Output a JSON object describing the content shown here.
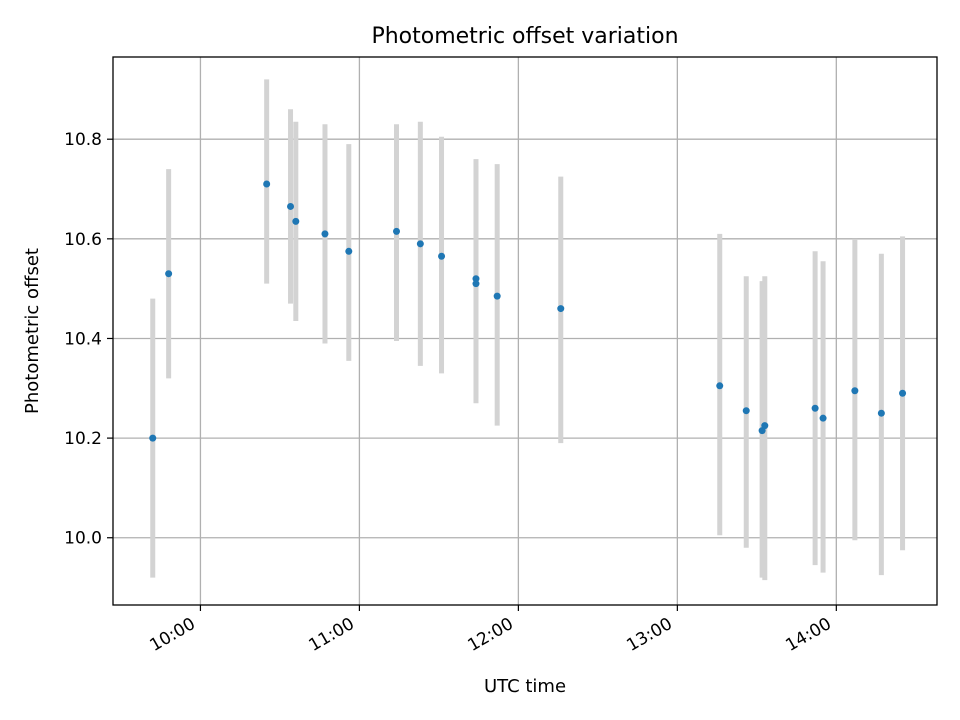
{
  "chart_data": {
    "type": "scatter",
    "title": "Photometric offset variation",
    "xlabel": "UTC time",
    "ylabel": "Photometric offset",
    "x_ticks": [
      "10:00",
      "11:00",
      "12:00",
      "13:00",
      "14:00"
    ],
    "y_ticks": [
      "10.0",
      "10.2",
      "10.4",
      "10.6",
      "10.8"
    ],
    "xlim": [
      "09:27",
      "14:38"
    ],
    "ylim": [
      9.865,
      10.965
    ],
    "grid": true,
    "colors": {
      "point": "#1f77b4",
      "errorbar": "#d3d3d3",
      "grid": "#b0b0b0"
    },
    "points": [
      {
        "x": "09:42",
        "y": 10.2,
        "err_low": 9.92,
        "err_high": 10.48
      },
      {
        "x": "09:48",
        "y": 10.53,
        "err_low": 10.32,
        "err_high": 10.74
      },
      {
        "x": "10:25",
        "y": 10.71,
        "err_low": 10.51,
        "err_high": 10.92
      },
      {
        "x": "10:34",
        "y": 10.665,
        "err_low": 10.47,
        "err_high": 10.86
      },
      {
        "x": "10:36",
        "y": 10.635,
        "err_low": 10.435,
        "err_high": 10.835
      },
      {
        "x": "10:47",
        "y": 10.61,
        "err_low": 10.39,
        "err_high": 10.83
      },
      {
        "x": "10:56",
        "y": 10.575,
        "err_low": 10.355,
        "err_high": 10.79
      },
      {
        "x": "11:14",
        "y": 10.615,
        "err_low": 10.395,
        "err_high": 10.83
      },
      {
        "x": "11:23",
        "y": 10.59,
        "err_low": 10.345,
        "err_high": 10.835
      },
      {
        "x": "11:31",
        "y": 10.565,
        "err_low": 10.33,
        "err_high": 10.805
      },
      {
        "x": "11:44",
        "y": 10.51,
        "err_low": 10.27,
        "err_high": 10.745
      },
      {
        "x": "11:44",
        "y": 10.52,
        "err_low": 10.28,
        "err_high": 10.76
      },
      {
        "x": "11:52",
        "y": 10.485,
        "err_low": 10.225,
        "err_high": 10.75
      },
      {
        "x": "12:16",
        "y": 10.46,
        "err_low": 10.19,
        "err_high": 10.725
      },
      {
        "x": "13:16",
        "y": 10.305,
        "err_low": 10.005,
        "err_high": 10.61
      },
      {
        "x": "13:26",
        "y": 10.255,
        "err_low": 9.98,
        "err_high": 10.525
      },
      {
        "x": "13:32",
        "y": 10.215,
        "err_low": 9.92,
        "err_high": 10.515
      },
      {
        "x": "13:33",
        "y": 10.225,
        "err_low": 9.915,
        "err_high": 10.525
      },
      {
        "x": "13:52",
        "y": 10.26,
        "err_low": 9.945,
        "err_high": 10.575
      },
      {
        "x": "13:55",
        "y": 10.24,
        "err_low": 9.93,
        "err_high": 10.555
      },
      {
        "x": "14:07",
        "y": 10.295,
        "err_low": 9.995,
        "err_high": 10.6
      },
      {
        "x": "14:17",
        "y": 10.25,
        "err_low": 9.925,
        "err_high": 10.57
      },
      {
        "x": "14:25",
        "y": 10.29,
        "err_low": 9.975,
        "err_high": 10.605
      }
    ]
  }
}
